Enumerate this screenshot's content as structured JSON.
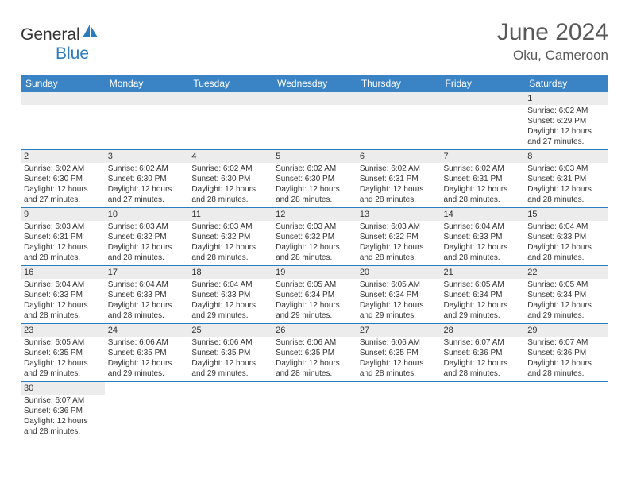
{
  "logo": {
    "text_general": "General",
    "text_blue": "Blue",
    "sail_color": "#2b7bbf"
  },
  "header": {
    "month_title": "June 2024",
    "location": "Oku, Cameroon"
  },
  "colors": {
    "header_bg": "#3a83c4",
    "header_text": "#ffffff",
    "number_bg": "#ececec",
    "border": "#2b7bbf",
    "text": "#333333",
    "title_text": "#595959"
  },
  "day_headers": [
    "Sunday",
    "Monday",
    "Tuesday",
    "Wednesday",
    "Thursday",
    "Friday",
    "Saturday"
  ],
  "weeks": [
    [
      {
        "num": "",
        "sunrise": "",
        "sunset": "",
        "daylight1": "",
        "daylight2": ""
      },
      {
        "num": "",
        "sunrise": "",
        "sunset": "",
        "daylight1": "",
        "daylight2": ""
      },
      {
        "num": "",
        "sunrise": "",
        "sunset": "",
        "daylight1": "",
        "daylight2": ""
      },
      {
        "num": "",
        "sunrise": "",
        "sunset": "",
        "daylight1": "",
        "daylight2": ""
      },
      {
        "num": "",
        "sunrise": "",
        "sunset": "",
        "daylight1": "",
        "daylight2": ""
      },
      {
        "num": "",
        "sunrise": "",
        "sunset": "",
        "daylight1": "",
        "daylight2": ""
      },
      {
        "num": "1",
        "sunrise": "Sunrise: 6:02 AM",
        "sunset": "Sunset: 6:29 PM",
        "daylight1": "Daylight: 12 hours",
        "daylight2": "and 27 minutes."
      }
    ],
    [
      {
        "num": "2",
        "sunrise": "Sunrise: 6:02 AM",
        "sunset": "Sunset: 6:30 PM",
        "daylight1": "Daylight: 12 hours",
        "daylight2": "and 27 minutes."
      },
      {
        "num": "3",
        "sunrise": "Sunrise: 6:02 AM",
        "sunset": "Sunset: 6:30 PM",
        "daylight1": "Daylight: 12 hours",
        "daylight2": "and 27 minutes."
      },
      {
        "num": "4",
        "sunrise": "Sunrise: 6:02 AM",
        "sunset": "Sunset: 6:30 PM",
        "daylight1": "Daylight: 12 hours",
        "daylight2": "and 28 minutes."
      },
      {
        "num": "5",
        "sunrise": "Sunrise: 6:02 AM",
        "sunset": "Sunset: 6:30 PM",
        "daylight1": "Daylight: 12 hours",
        "daylight2": "and 28 minutes."
      },
      {
        "num": "6",
        "sunrise": "Sunrise: 6:02 AM",
        "sunset": "Sunset: 6:31 PM",
        "daylight1": "Daylight: 12 hours",
        "daylight2": "and 28 minutes."
      },
      {
        "num": "7",
        "sunrise": "Sunrise: 6:02 AM",
        "sunset": "Sunset: 6:31 PM",
        "daylight1": "Daylight: 12 hours",
        "daylight2": "and 28 minutes."
      },
      {
        "num": "8",
        "sunrise": "Sunrise: 6:03 AM",
        "sunset": "Sunset: 6:31 PM",
        "daylight1": "Daylight: 12 hours",
        "daylight2": "and 28 minutes."
      }
    ],
    [
      {
        "num": "9",
        "sunrise": "Sunrise: 6:03 AM",
        "sunset": "Sunset: 6:31 PM",
        "daylight1": "Daylight: 12 hours",
        "daylight2": "and 28 minutes."
      },
      {
        "num": "10",
        "sunrise": "Sunrise: 6:03 AM",
        "sunset": "Sunset: 6:32 PM",
        "daylight1": "Daylight: 12 hours",
        "daylight2": "and 28 minutes."
      },
      {
        "num": "11",
        "sunrise": "Sunrise: 6:03 AM",
        "sunset": "Sunset: 6:32 PM",
        "daylight1": "Daylight: 12 hours",
        "daylight2": "and 28 minutes."
      },
      {
        "num": "12",
        "sunrise": "Sunrise: 6:03 AM",
        "sunset": "Sunset: 6:32 PM",
        "daylight1": "Daylight: 12 hours",
        "daylight2": "and 28 minutes."
      },
      {
        "num": "13",
        "sunrise": "Sunrise: 6:03 AM",
        "sunset": "Sunset: 6:32 PM",
        "daylight1": "Daylight: 12 hours",
        "daylight2": "and 28 minutes."
      },
      {
        "num": "14",
        "sunrise": "Sunrise: 6:04 AM",
        "sunset": "Sunset: 6:33 PM",
        "daylight1": "Daylight: 12 hours",
        "daylight2": "and 28 minutes."
      },
      {
        "num": "15",
        "sunrise": "Sunrise: 6:04 AM",
        "sunset": "Sunset: 6:33 PM",
        "daylight1": "Daylight: 12 hours",
        "daylight2": "and 28 minutes."
      }
    ],
    [
      {
        "num": "16",
        "sunrise": "Sunrise: 6:04 AM",
        "sunset": "Sunset: 6:33 PM",
        "daylight1": "Daylight: 12 hours",
        "daylight2": "and 28 minutes."
      },
      {
        "num": "17",
        "sunrise": "Sunrise: 6:04 AM",
        "sunset": "Sunset: 6:33 PM",
        "daylight1": "Daylight: 12 hours",
        "daylight2": "and 28 minutes."
      },
      {
        "num": "18",
        "sunrise": "Sunrise: 6:04 AM",
        "sunset": "Sunset: 6:33 PM",
        "daylight1": "Daylight: 12 hours",
        "daylight2": "and 29 minutes."
      },
      {
        "num": "19",
        "sunrise": "Sunrise: 6:05 AM",
        "sunset": "Sunset: 6:34 PM",
        "daylight1": "Daylight: 12 hours",
        "daylight2": "and 29 minutes."
      },
      {
        "num": "20",
        "sunrise": "Sunrise: 6:05 AM",
        "sunset": "Sunset: 6:34 PM",
        "daylight1": "Daylight: 12 hours",
        "daylight2": "and 29 minutes."
      },
      {
        "num": "21",
        "sunrise": "Sunrise: 6:05 AM",
        "sunset": "Sunset: 6:34 PM",
        "daylight1": "Daylight: 12 hours",
        "daylight2": "and 29 minutes."
      },
      {
        "num": "22",
        "sunrise": "Sunrise: 6:05 AM",
        "sunset": "Sunset: 6:34 PM",
        "daylight1": "Daylight: 12 hours",
        "daylight2": "and 29 minutes."
      }
    ],
    [
      {
        "num": "23",
        "sunrise": "Sunrise: 6:05 AM",
        "sunset": "Sunset: 6:35 PM",
        "daylight1": "Daylight: 12 hours",
        "daylight2": "and 29 minutes."
      },
      {
        "num": "24",
        "sunrise": "Sunrise: 6:06 AM",
        "sunset": "Sunset: 6:35 PM",
        "daylight1": "Daylight: 12 hours",
        "daylight2": "and 29 minutes."
      },
      {
        "num": "25",
        "sunrise": "Sunrise: 6:06 AM",
        "sunset": "Sunset: 6:35 PM",
        "daylight1": "Daylight: 12 hours",
        "daylight2": "and 29 minutes."
      },
      {
        "num": "26",
        "sunrise": "Sunrise: 6:06 AM",
        "sunset": "Sunset: 6:35 PM",
        "daylight1": "Daylight: 12 hours",
        "daylight2": "and 28 minutes."
      },
      {
        "num": "27",
        "sunrise": "Sunrise: 6:06 AM",
        "sunset": "Sunset: 6:35 PM",
        "daylight1": "Daylight: 12 hours",
        "daylight2": "and 28 minutes."
      },
      {
        "num": "28",
        "sunrise": "Sunrise: 6:07 AM",
        "sunset": "Sunset: 6:36 PM",
        "daylight1": "Daylight: 12 hours",
        "daylight2": "and 28 minutes."
      },
      {
        "num": "29",
        "sunrise": "Sunrise: 6:07 AM",
        "sunset": "Sunset: 6:36 PM",
        "daylight1": "Daylight: 12 hours",
        "daylight2": "and 28 minutes."
      }
    ],
    [
      {
        "num": "30",
        "sunrise": "Sunrise: 6:07 AM",
        "sunset": "Sunset: 6:36 PM",
        "daylight1": "Daylight: 12 hours",
        "daylight2": "and 28 minutes."
      },
      {
        "num": "",
        "sunrise": "",
        "sunset": "",
        "daylight1": "",
        "daylight2": ""
      },
      {
        "num": "",
        "sunrise": "",
        "sunset": "",
        "daylight1": "",
        "daylight2": ""
      },
      {
        "num": "",
        "sunrise": "",
        "sunset": "",
        "daylight1": "",
        "daylight2": ""
      },
      {
        "num": "",
        "sunrise": "",
        "sunset": "",
        "daylight1": "",
        "daylight2": ""
      },
      {
        "num": "",
        "sunrise": "",
        "sunset": "",
        "daylight1": "",
        "daylight2": ""
      },
      {
        "num": "",
        "sunrise": "",
        "sunset": "",
        "daylight1": "",
        "daylight2": ""
      }
    ]
  ]
}
